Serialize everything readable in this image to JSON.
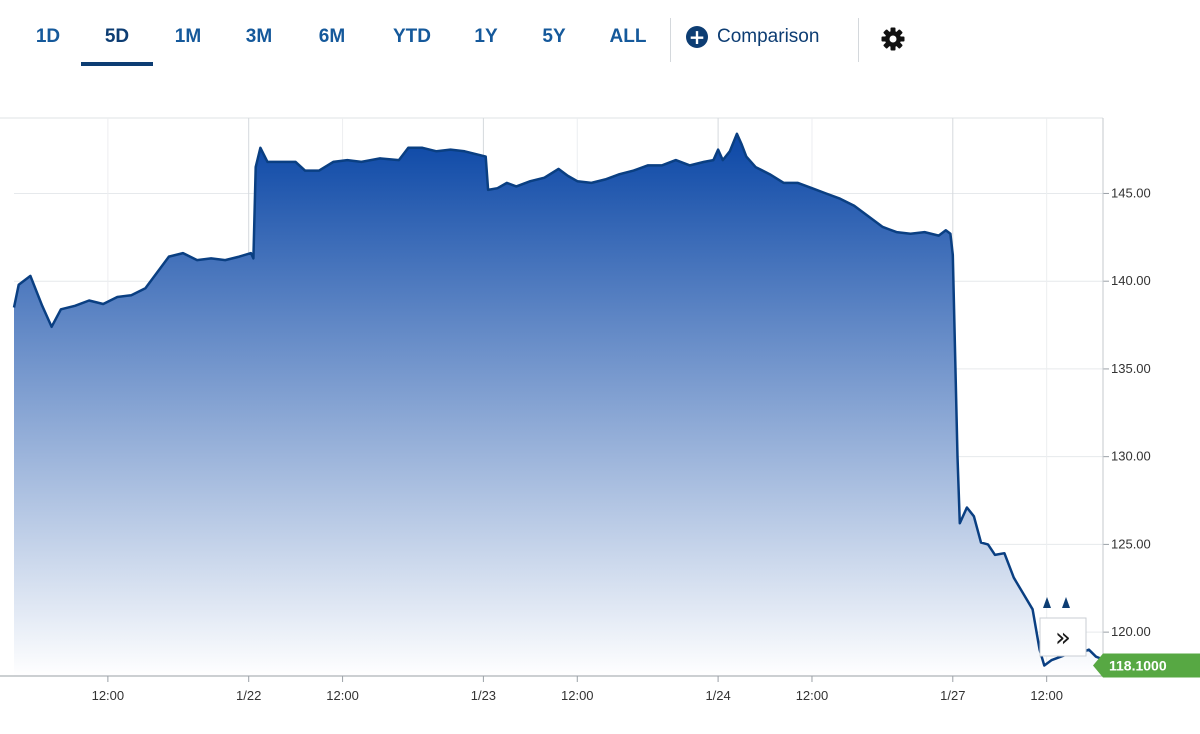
{
  "toolbar": {
    "ranges": [
      {
        "label": "1D"
      },
      {
        "label": "5D"
      },
      {
        "label": "1M"
      },
      {
        "label": "3M"
      },
      {
        "label": "6M"
      },
      {
        "label": "YTD"
      },
      {
        "label": "1Y"
      },
      {
        "label": "5Y"
      },
      {
        "label": "ALL"
      }
    ],
    "active_range": "5D",
    "comparison_label": "Comparison",
    "comparison_icon": "plus-circle-icon",
    "settings_icon": "gear-icon",
    "accent_color": "#0d3d73",
    "tab_color": "#15599b"
  },
  "chart_data": {
    "type": "area",
    "title": "",
    "xlabel": "",
    "ylabel": "",
    "ylim": [
      117.5,
      149.3
    ],
    "y_ticks": [
      "120.00",
      "125.00",
      "130.00",
      "135.00",
      "140.00",
      "145.00"
    ],
    "x_ticks": [
      "12:00",
      "1/22",
      "12:00",
      "1/23",
      "12:00",
      "1/24",
      "12:00",
      "1/27",
      "12:00"
    ],
    "x_tick_index": [
      2,
      5,
      7,
      10,
      12,
      15,
      17,
      20,
      22
    ],
    "x_range": [
      0,
      23.2
    ],
    "grid": true,
    "fill_color_top": "#0b47a6",
    "fill_color_bottom": "#ffffff",
    "line_color": "#0a3f82",
    "last_value_label": "118.1000",
    "last_value": 118.1,
    "last_value_color": "#57a843",
    "scroll_forward_label": "»",
    "series": [
      {
        "values": [
          [
            0.0,
            138.5
          ],
          [
            0.1,
            139.8
          ],
          [
            0.35,
            140.3
          ],
          [
            0.6,
            138.6
          ],
          [
            0.8,
            137.4
          ],
          [
            1.0,
            138.4
          ],
          [
            1.3,
            138.6
          ],
          [
            1.6,
            138.9
          ],
          [
            1.9,
            138.7
          ],
          [
            2.2,
            139.1
          ],
          [
            2.5,
            139.2
          ],
          [
            2.8,
            139.6
          ],
          [
            3.05,
            140.5
          ],
          [
            3.3,
            141.4
          ],
          [
            3.6,
            141.6
          ],
          [
            3.9,
            141.2
          ],
          [
            4.2,
            141.3
          ],
          [
            4.5,
            141.2
          ],
          [
            4.8,
            141.4
          ],
          [
            5.05,
            141.6
          ],
          [
            5.1,
            141.3
          ],
          [
            5.15,
            146.5
          ],
          [
            5.25,
            147.6
          ],
          [
            5.4,
            146.8
          ],
          [
            5.7,
            146.8
          ],
          [
            6.0,
            146.8
          ],
          [
            6.2,
            146.3
          ],
          [
            6.5,
            146.3
          ],
          [
            6.8,
            146.8
          ],
          [
            7.1,
            146.9
          ],
          [
            7.4,
            146.8
          ],
          [
            7.8,
            147.0
          ],
          [
            8.2,
            146.9
          ],
          [
            8.4,
            147.6
          ],
          [
            8.7,
            147.6
          ],
          [
            9.0,
            147.4
          ],
          [
            9.3,
            147.5
          ],
          [
            9.6,
            147.4
          ],
          [
            9.9,
            147.2
          ],
          [
            10.05,
            147.1
          ],
          [
            10.1,
            145.2
          ],
          [
            10.3,
            145.3
          ],
          [
            10.5,
            145.6
          ],
          [
            10.7,
            145.4
          ],
          [
            11.0,
            145.7
          ],
          [
            11.3,
            145.9
          ],
          [
            11.6,
            146.4
          ],
          [
            11.8,
            146.0
          ],
          [
            12.0,
            145.7
          ],
          [
            12.3,
            145.6
          ],
          [
            12.6,
            145.8
          ],
          [
            12.9,
            146.1
          ],
          [
            13.2,
            146.3
          ],
          [
            13.5,
            146.6
          ],
          [
            13.8,
            146.6
          ],
          [
            14.1,
            146.9
          ],
          [
            14.4,
            146.6
          ],
          [
            14.7,
            146.8
          ],
          [
            14.9,
            146.9
          ],
          [
            15.0,
            147.5
          ],
          [
            15.1,
            146.9
          ],
          [
            15.25,
            147.4
          ],
          [
            15.4,
            148.4
          ],
          [
            15.5,
            147.8
          ],
          [
            15.6,
            147.1
          ],
          [
            15.8,
            146.5
          ],
          [
            16.1,
            146.1
          ],
          [
            16.4,
            145.6
          ],
          [
            16.7,
            145.6
          ],
          [
            17.0,
            145.3
          ],
          [
            17.3,
            145.0
          ],
          [
            17.6,
            144.7
          ],
          [
            17.9,
            144.3
          ],
          [
            18.2,
            143.7
          ],
          [
            18.5,
            143.1
          ],
          [
            18.8,
            142.8
          ],
          [
            19.1,
            142.7
          ],
          [
            19.4,
            142.8
          ],
          [
            19.7,
            142.6
          ],
          [
            19.85,
            142.9
          ],
          [
            19.95,
            142.7
          ],
          [
            20.0,
            141.5
          ],
          [
            20.1,
            130.0
          ],
          [
            20.15,
            126.2
          ],
          [
            20.3,
            127.1
          ],
          [
            20.45,
            126.6
          ],
          [
            20.6,
            125.1
          ],
          [
            20.75,
            125.0
          ],
          [
            20.9,
            124.4
          ],
          [
            21.1,
            124.5
          ],
          [
            21.3,
            123.1
          ],
          [
            21.5,
            122.2
          ],
          [
            21.7,
            121.3
          ],
          [
            21.85,
            119.0
          ],
          [
            21.95,
            118.1
          ],
          [
            22.1,
            118.4
          ],
          [
            22.4,
            118.7
          ],
          [
            22.7,
            118.8
          ],
          [
            22.9,
            119.0
          ],
          [
            23.05,
            118.6
          ],
          [
            23.15,
            118.5
          ],
          [
            23.2,
            118.1
          ]
        ]
      }
    ]
  }
}
